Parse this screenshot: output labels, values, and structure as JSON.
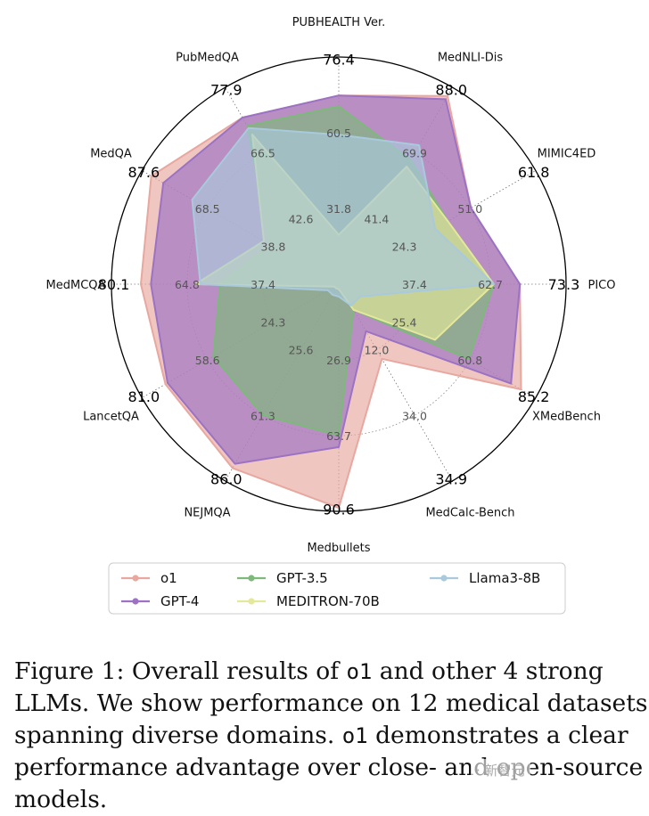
{
  "chart_data": {
    "type": "radar",
    "axes": [
      "PUBHEALTH Ver.",
      "MedNLI-Dis",
      "MIMIC4ED",
      "PICO",
      "XMedBench",
      "MedCalc-Bench",
      "Medbullets",
      "NEJMQA",
      "LancetQA",
      "MedMCQA",
      "MedQA",
      "PubMedQA"
    ],
    "series": [
      {
        "name": "o1",
        "color": "#e8a79f",
        "values": [
          76.4,
          88.0,
          61.8,
          73.3,
          85.2,
          34.9,
          90.6,
          86.0,
          81.0,
          80.1,
          87.6,
          77.9
        ]
      },
      {
        "name": "GPT-4",
        "color": "#9b72c4",
        "values": [
          76.4,
          86.5,
          61.8,
          73.3,
          80.5,
          22.0,
          66.0,
          84.0,
          80.0,
          76.0,
          82.0,
          77.9
        ]
      },
      {
        "name": "GPT-3.5",
        "color": "#7cb97a",
        "values": [
          72.0,
          58.0,
          51.0,
          62.7,
          60.8,
          12.0,
          61.3,
          61.3,
          58.6,
          48.0,
          32.0,
          74.0
        ]
      },
      {
        "name": "MEDITRON-70B",
        "color": "#e3e89a",
        "values": [
          20.0,
          55.0,
          51.0,
          62.7,
          45.0,
          12.0,
          2.0,
          2.0,
          2.0,
          58.0,
          35.0,
          70.0
        ]
      },
      {
        "name": "Llama3-8B",
        "color": "#a9c9dc",
        "values": [
          60.5,
          65.0,
          45.0,
          62.7,
          10.0,
          10.0,
          5.0,
          5.0,
          5.0,
          56.0,
          68.5,
          73.0
        ]
      }
    ],
    "max_labels": [
      "76.4",
      "88.0",
      "61.8",
      "73.3",
      "85.2",
      "34.9",
      "90.6",
      "86.0",
      "81.0",
      "80.1",
      "87.6",
      "77.9"
    ],
    "ring_labels": [
      [
        "31.8",
        "60.5"
      ],
      [
        "41.4",
        "69.9"
      ],
      [
        "24.3",
        "51.0"
      ],
      [
        "37.4",
        "62.7"
      ],
      [
        "25.4",
        "60.8"
      ],
      [
        "12.0",
        "34.0"
      ],
      [
        "26.9",
        "63.7"
      ],
      [
        "25.6",
        "61.3"
      ],
      [
        "24.3",
        "58.6"
      ],
      [
        "37.4",
        "64.8"
      ],
      [
        "38.8",
        "68.5"
      ],
      [
        "42.6",
        "66.5"
      ]
    ],
    "grid": true,
    "legend_position": "bottom"
  },
  "caption": {
    "prefix": "Figure 1: Overall results of ",
    "model1": "o1",
    "middle": " and other 4 strong LLMs. We show performance on 12 medical datasets spanning diverse domains. ",
    "model2": "o1",
    "suffix": " demonstrates a clear performance advantage over close- and open-source models."
  },
  "watermark": "· 新智元"
}
